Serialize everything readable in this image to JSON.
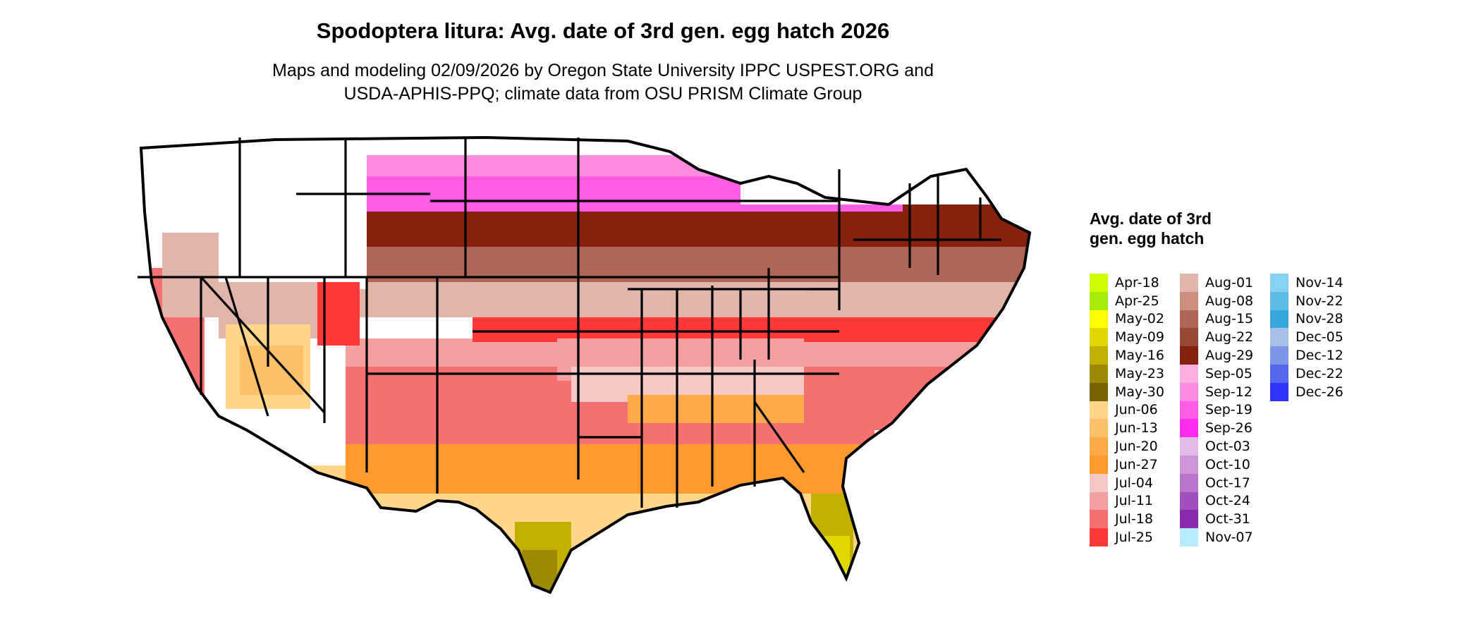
{
  "title": "Spodoptera litura: Avg. date of 3rd gen. egg hatch 2026",
  "subtitle_lines": [
    "Maps and modeling 02/09/2026 by Oregon State University IPPC USPEST.ORG and",
    "USDA-APHIS-PPQ; climate data from OSU PRISM Climate Group"
  ],
  "legend": {
    "title": "Avg. date of 3rd gen. egg hatch",
    "items": [
      {
        "label": "Apr-18",
        "color": "#CCFF00"
      },
      {
        "label": "Apr-25",
        "color": "#A6EB0B"
      },
      {
        "label": "May-02",
        "color": "#FFFF00"
      },
      {
        "label": "May-09",
        "color": "#E0D600"
      },
      {
        "label": "May-16",
        "color": "#C2B000"
      },
      {
        "label": "May-23",
        "color": "#9E8A00"
      },
      {
        "label": "May-30",
        "color": "#7A6200"
      },
      {
        "label": "Jun-06",
        "color": "#FFD68A"
      },
      {
        "label": "Jun-13",
        "color": "#FFC06A"
      },
      {
        "label": "Jun-20",
        "color": "#FFAA4A"
      },
      {
        "label": "Jun-27",
        "color": "#FF9A2E"
      },
      {
        "label": "Jul-04",
        "color": "#F5C8C8"
      },
      {
        "label": "Jul-11",
        "color": "#F4A0A0"
      },
      {
        "label": "Jul-18",
        "color": "#F57070"
      },
      {
        "label": "Jul-25",
        "color": "#FF3838"
      },
      {
        "label": "Aug-01",
        "color": "#E2B5AA"
      },
      {
        "label": "Aug-08",
        "color": "#CB8E80"
      },
      {
        "label": "Aug-15",
        "color": "#B06656"
      },
      {
        "label": "Aug-22",
        "color": "#994836"
      },
      {
        "label": "Aug-29",
        "color": "#86200F"
      },
      {
        "label": "Sep-05",
        "color": "#FFB0E0"
      },
      {
        "label": "Sep-12",
        "color": "#FF8CE0"
      },
      {
        "label": "Sep-19",
        "color": "#FF5CE6"
      },
      {
        "label": "Sep-26",
        "color": "#FF2CF0"
      },
      {
        "label": "Oct-03",
        "color": "#E0BCE6"
      },
      {
        "label": "Oct-10",
        "color": "#CC96D8"
      },
      {
        "label": "Oct-17",
        "color": "#B876CA"
      },
      {
        "label": "Oct-24",
        "color": "#A050BE"
      },
      {
        "label": "Oct-31",
        "color": "#8A28AE"
      },
      {
        "label": "Nov-07",
        "color": "#B8EBFF"
      },
      {
        "label": "Nov-14",
        "color": "#86D2F2"
      },
      {
        "label": "Nov-22",
        "color": "#5CBCE6"
      },
      {
        "label": "Nov-28",
        "color": "#36A6DC"
      },
      {
        "label": "Dec-05",
        "color": "#A8C0E6"
      },
      {
        "label": "Dec-12",
        "color": "#7C96EA"
      },
      {
        "label": "Dec-22",
        "color": "#5468EE"
      },
      {
        "label": "Dec-26",
        "color": "#2E34F8"
      }
    ]
  }
}
